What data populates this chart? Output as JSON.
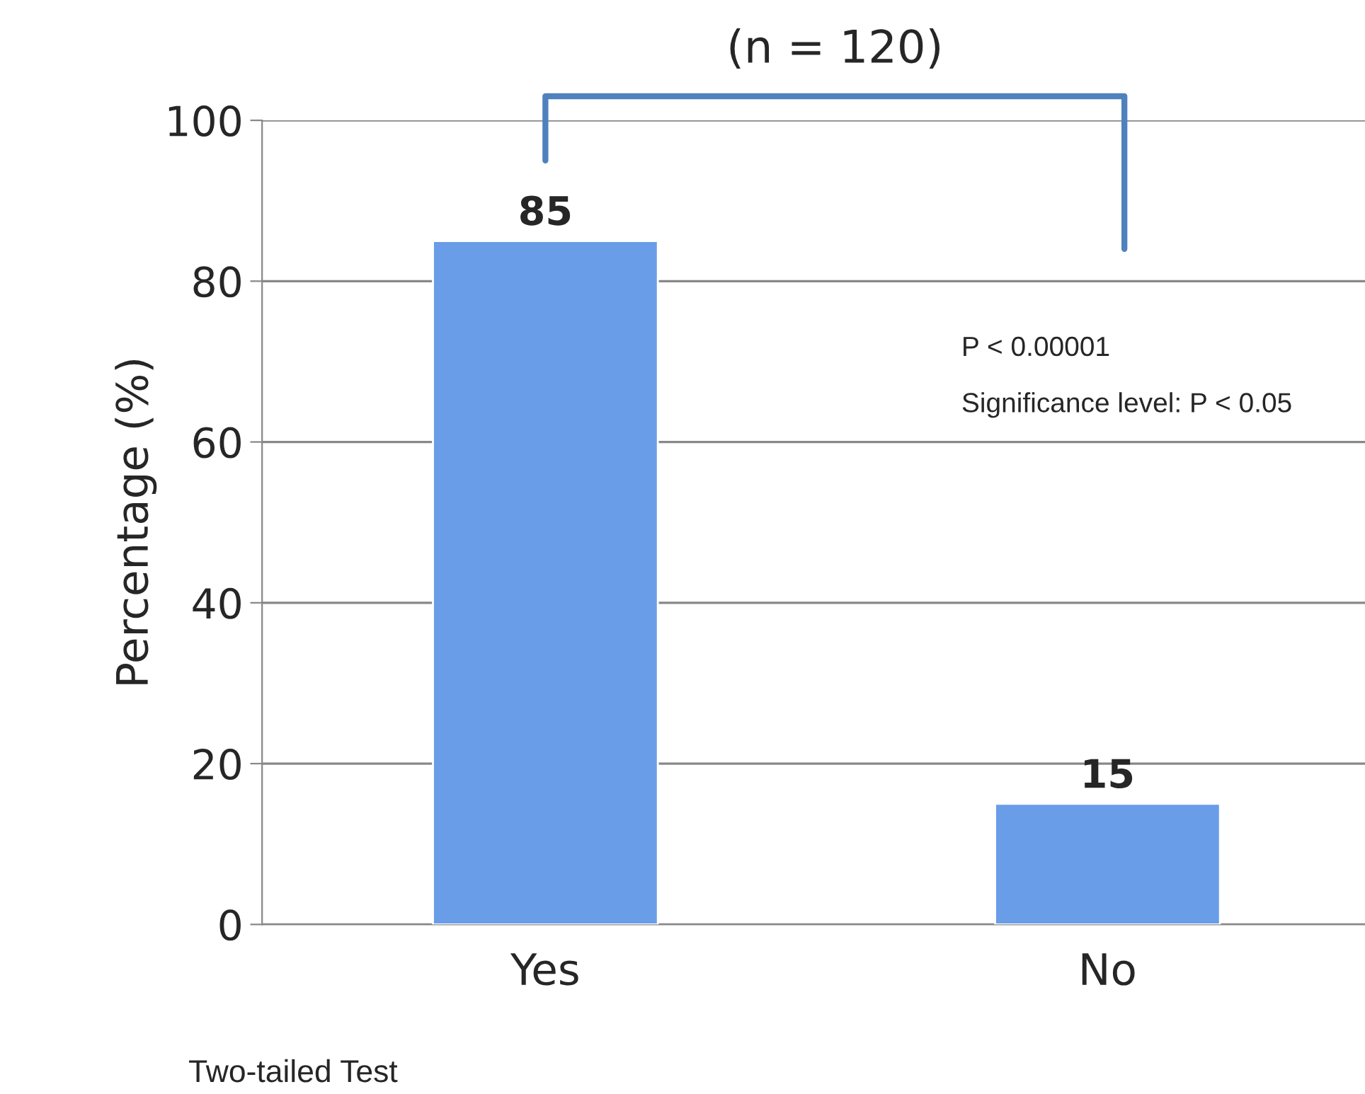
{
  "chart_data": {
    "type": "bar",
    "categories": [
      "Yes",
      "No"
    ],
    "values": [
      85,
      15
    ],
    "color": "#6a9de8",
    "ylabel": "Percentage (%)",
    "ylim": [
      0,
      100
    ],
    "yticks": [
      0,
      20,
      40,
      60,
      80,
      100
    ],
    "grid": "y",
    "data_labels": true,
    "annotations": [
      "(n = 120)",
      "P < 0.00001",
      "Significance level: P < 0.05",
      "Two-tailed Test"
    ]
  }
}
